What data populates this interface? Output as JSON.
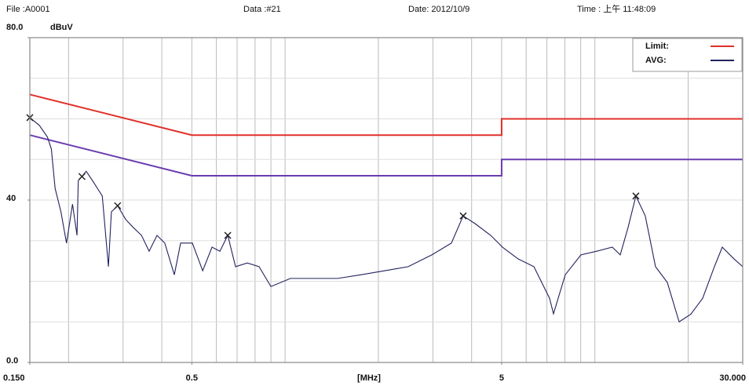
{
  "header": {
    "file": "File :A0001",
    "data": "Data :#21",
    "date": "Date: 2012/10/9",
    "time": "Time : 上午 11:48:09"
  },
  "chart_data": {
    "type": "line",
    "ylabel": "dBuV",
    "xlabel": "[MHz]",
    "xlog": true,
    "xlim": [
      0.15,
      30
    ],
    "ylim": [
      0,
      80
    ],
    "xticks": [
      {
        "value": 0.15,
        "label": "0.150"
      },
      0.5,
      5,
      {
        "value": 30,
        "label": "30.000"
      }
    ],
    "yticks": [
      {
        "value": 0,
        "label": "0.0"
      },
      40,
      {
        "value": 80,
        "label": "80.0"
      }
    ],
    "xgrid": [
      0.2,
      0.3,
      0.4,
      0.5,
      0.6,
      0.7,
      0.8,
      0.9,
      1,
      2,
      3,
      4,
      5,
      6,
      7,
      8,
      9,
      10,
      20,
      30
    ],
    "ygrid": [
      10,
      20,
      30,
      40,
      50,
      60,
      70
    ],
    "legend": "upper right",
    "series": [
      {
        "name": "Limit:",
        "color": "#e0302a",
        "x": [
          0.15,
          0.5,
          5,
          5,
          30
        ],
        "values": [
          66,
          56,
          56,
          60,
          60
        ]
      },
      {
        "color": "#6a3cb0",
        "x": [
          0.15,
          0.5,
          5,
          5,
          30
        ],
        "values": [
          56,
          46,
          46,
          50,
          50
        ]
      },
      {
        "name": "AVG:",
        "color": "#22225e",
        "x": [
          0.15,
          0.161,
          0.171,
          0.176,
          0.181,
          0.189,
          0.197,
          0.206,
          0.213,
          0.215,
          0.221,
          0.228,
          0.239,
          0.257,
          0.269,
          0.275,
          0.288,
          0.306,
          0.324,
          0.344,
          0.364,
          0.386,
          0.409,
          0.439,
          0.46,
          0.502,
          0.542,
          0.581,
          0.616,
          0.653,
          0.692,
          0.755,
          0.824,
          0.9,
          1.041,
          1.24,
          1.477,
          1.76,
          2.097,
          2.497,
          2.975,
          3.442,
          3.757,
          4.102,
          4.61,
          5.031,
          5.653,
          6.355,
          7.14,
          7.351,
          8.023,
          9.015,
          10.13,
          11.38,
          12.07,
          12.79,
          13.56,
          14.54,
          15.69,
          17.13,
          18.7,
          20.4,
          22.27,
          24.31,
          25.77,
          28.13,
          30.0
        ],
        "values": [
          60.3,
          58.4,
          55.5,
          52.6,
          42.9,
          37.1,
          29.4,
          39,
          31.3,
          44.8,
          45.8,
          47.1,
          44.8,
          41,
          23.6,
          37.1,
          38.6,
          35.2,
          33.2,
          31.3,
          27.4,
          31.3,
          29.4,
          21.6,
          29.4,
          29.4,
          22.6,
          28.4,
          27.4,
          31.3,
          23.6,
          24.5,
          23.6,
          18.7,
          20.7,
          20.7,
          20.7,
          21.6,
          22.6,
          23.6,
          26.5,
          29.4,
          36.1,
          34.2,
          31.3,
          28.4,
          25.5,
          23.6,
          15.8,
          12,
          21.6,
          26.5,
          27.4,
          28.4,
          26.5,
          33.2,
          41,
          36.1,
          23.6,
          19.7,
          10,
          11.9,
          15.8,
          23.6,
          28.4,
          25.5,
          23.6
        ]
      },
      {
        "color": "#222222",
        "marker": "x",
        "line": false,
        "x": [
          0.15,
          0.221,
          0.288,
          0.653,
          3.757,
          13.56
        ],
        "values": [
          60.3,
          45.8,
          38.6,
          31.3,
          36.1,
          41
        ]
      }
    ]
  }
}
